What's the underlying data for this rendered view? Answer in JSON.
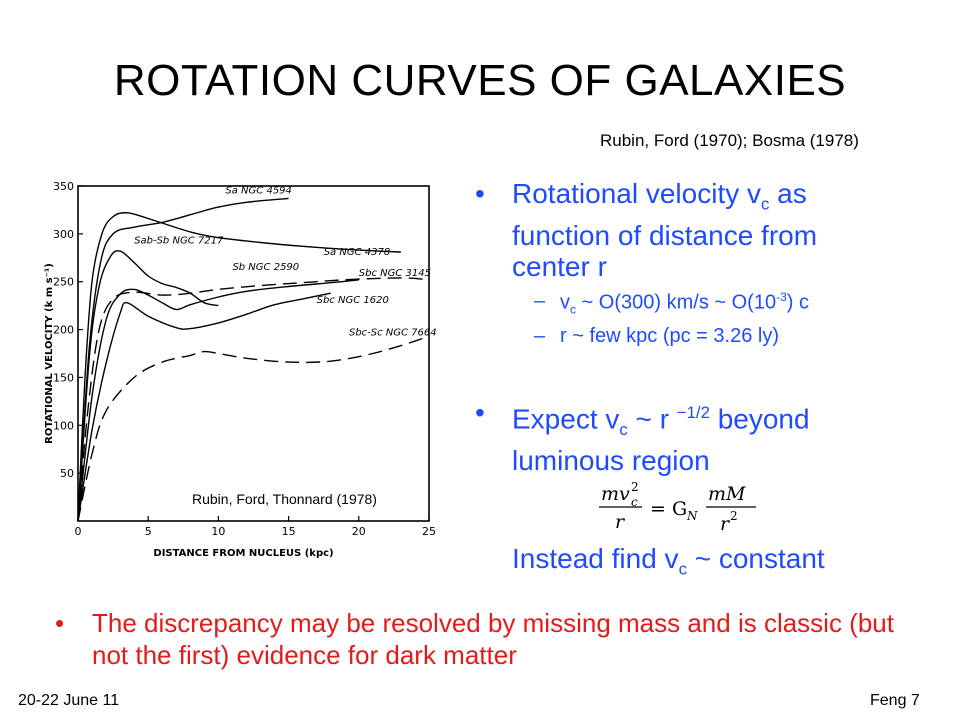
{
  "slide": {
    "title": "ROTATION CURVES OF GALAXIES",
    "citation": "Rubin, Ford (1970); Bosma (1978)",
    "bullet1": {
      "prefix": "Rotational velocity v",
      "sub": "c",
      "suffix": " as function of distance from center r"
    },
    "sub1": {
      "a": "v",
      "a_sub": "c",
      "b": " ~ O(300) km/s ~ O(10",
      "b_sup": "-3",
      "c": ") c"
    },
    "sub2": "r ~ few kpc  (pc = 3.26 ly)",
    "bullet2": {
      "prefix": "Expect v",
      "sub": "c",
      "mid": " ~ r ",
      "sup": "−1/2",
      "suffix": " beyond luminous region"
    },
    "instead": {
      "prefix": "Instead find  v",
      "sub": "c",
      "suffix": " ~ constant"
    },
    "red_bullet": "The discrepancy may be resolved by missing mass and is classic (but not the first) evidence for dark matter",
    "footer_left": "20-22 June 11",
    "footer_right": "Feng   7",
    "bullet_glyph": "•",
    "dash_glyph": "–",
    "colors": {
      "text": "#000000",
      "bullet": "#1f4bff",
      "red": "#e31b1b"
    }
  },
  "formula": {
    "lhs_num": "mv",
    "lhs_sup": "2",
    "lhs_sub": "c",
    "lhs_den": "r",
    "eq": "= G",
    "eq_sub": "N",
    "rhs_num": "mM",
    "rhs_den": "r",
    "rhs_sup": "2"
  },
  "chart_data": {
    "type": "line",
    "xlabel": "DISTANCE  FROM NUCLEUS (kpc)",
    "ylabel": "ROTATIONAL VELOCITY (k m s⁻¹)",
    "xlim": [
      0,
      25
    ],
    "ylim": [
      0,
      350
    ],
    "x_ticks": [
      0,
      5,
      10,
      15,
      20,
      25
    ],
    "y_ticks": [
      50,
      100,
      150,
      200,
      250,
      300,
      350
    ],
    "credit": "Rubin, Ford, Thonnard (1978)",
    "series": [
      {
        "name": "Sa NGC 4594",
        "dashed": false,
        "label_x": 10.5,
        "label_y": 342,
        "points": [
          [
            0,
            0
          ],
          [
            0.8,
            180
          ],
          [
            1.6,
            270
          ],
          [
            2.5,
            300
          ],
          [
            4,
            307
          ],
          [
            6,
            312
          ],
          [
            8,
            320
          ],
          [
            10,
            328
          ],
          [
            12,
            333
          ],
          [
            15,
            337
          ]
        ]
      },
      {
        "name": "Sa NGC 4378",
        "dashed": false,
        "label_x": 17.5,
        "label_y": 278,
        "points": [
          [
            0,
            0
          ],
          [
            0.5,
            150
          ],
          [
            1,
            250
          ],
          [
            1.7,
            300
          ],
          [
            2.5,
            318
          ],
          [
            3.5,
            322
          ],
          [
            5,
            316
          ],
          [
            8,
            302
          ],
          [
            10,
            296
          ],
          [
            13,
            291
          ],
          [
            16,
            287
          ],
          [
            20,
            283
          ],
          [
            23,
            281
          ]
        ]
      },
      {
        "name": "Sab-Sb NGC 7217",
        "dashed": false,
        "label_x": 4,
        "label_y": 290,
        "points": [
          [
            0,
            0
          ],
          [
            0.8,
            170
          ],
          [
            1.5,
            245
          ],
          [
            2.3,
            276
          ],
          [
            3,
            282
          ],
          [
            4,
            270
          ],
          [
            5,
            256
          ],
          [
            6,
            248
          ],
          [
            7,
            244
          ],
          [
            8,
            238
          ],
          [
            9,
            228
          ],
          [
            10,
            225
          ]
        ]
      },
      {
        "name": "Sb NGC 2590",
        "dashed": false,
        "label_x": 11,
        "label_y": 262,
        "points": [
          [
            0,
            0
          ],
          [
            1,
            130
          ],
          [
            2,
            210
          ],
          [
            3,
            237
          ],
          [
            4,
            242
          ],
          [
            5,
            236
          ],
          [
            6,
            228
          ],
          [
            7,
            221
          ],
          [
            8,
            226
          ],
          [
            10,
            234
          ],
          [
            12,
            240
          ],
          [
            15,
            245
          ],
          [
            18,
            249
          ],
          [
            20,
            252
          ]
        ]
      },
      {
        "name": "Sbc NGC 3145",
        "dashed": true,
        "label_x": 20,
        "label_y": 256,
        "points": [
          [
            0,
            0
          ],
          [
            0.7,
            115
          ],
          [
            1.5,
            200
          ],
          [
            2.5,
            232
          ],
          [
            4,
            239
          ],
          [
            6,
            236
          ],
          [
            8,
            238
          ],
          [
            10,
            242
          ],
          [
            13,
            246
          ],
          [
            16,
            249
          ],
          [
            19,
            252
          ],
          [
            23,
            254
          ],
          [
            25,
            252
          ]
        ]
      },
      {
        "name": "Sbc NGC 1620",
        "dashed": false,
        "label_x": 17,
        "label_y": 228,
        "points": [
          [
            0,
            0
          ],
          [
            1,
            95
          ],
          [
            2,
            165
          ],
          [
            3,
            217
          ],
          [
            3.5,
            228
          ],
          [
            5,
            214
          ],
          [
            7,
            202
          ],
          [
            8,
            201
          ],
          [
            10,
            207
          ],
          [
            12,
            216
          ],
          [
            14,
            226
          ],
          [
            16,
            232
          ],
          [
            18,
            238
          ]
        ]
      },
      {
        "name": "Sbc-Sc NGC 7664",
        "dashed": true,
        "label_x": 19.3,
        "label_y": 194,
        "points": [
          [
            0,
            0
          ],
          [
            1,
            70
          ],
          [
            2,
            115
          ],
          [
            4,
            150
          ],
          [
            6,
            166
          ],
          [
            8,
            173
          ],
          [
            9,
            177
          ],
          [
            10,
            175
          ],
          [
            12,
            170
          ],
          [
            15,
            166
          ],
          [
            18,
            167
          ],
          [
            21,
            175
          ],
          [
            24,
            188
          ],
          [
            25,
            194
          ]
        ]
      }
    ]
  }
}
